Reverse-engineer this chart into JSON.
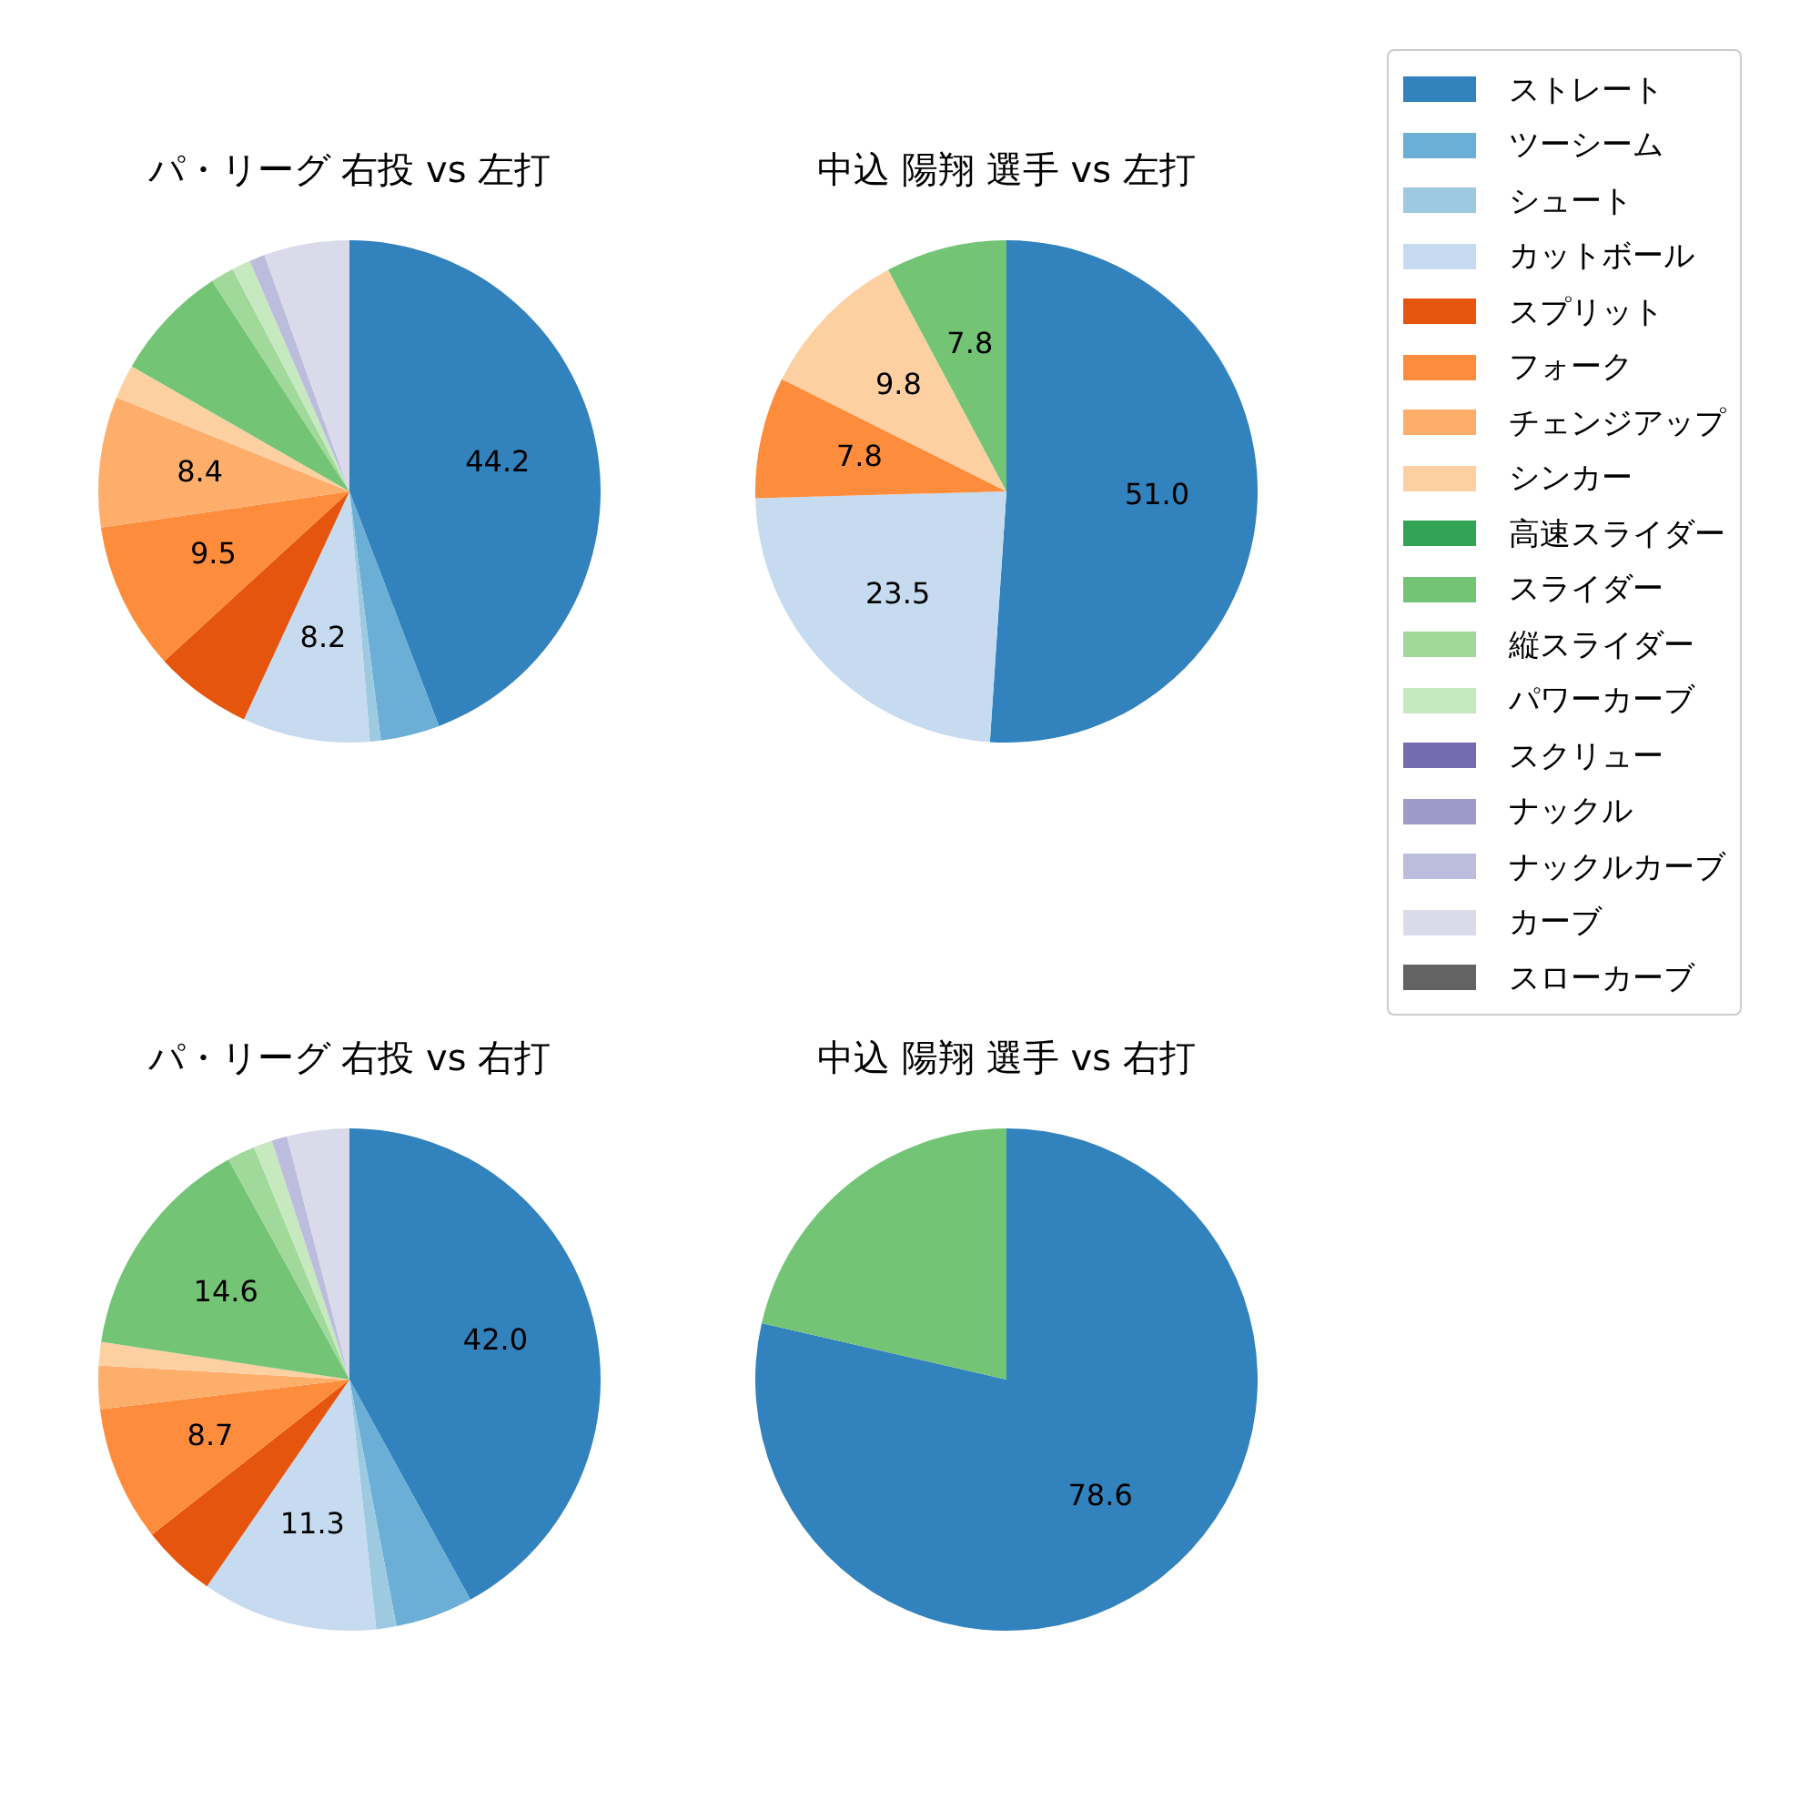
{
  "chart_data": [
    {
      "type": "pie",
      "title": "パ・リーグ 右投 vs 左打",
      "legend": "right",
      "categories": [
        "ストレート",
        "ツーシーム",
        "シュート",
        "カットボール",
        "スプリット",
        "フォーク",
        "チェンジアップ",
        "シンカー",
        "高速スライダー",
        "スライダー",
        "縦スライダー",
        "パワーカーブ",
        "スクリュー",
        "ナックル",
        "ナックルカーブ",
        "カーブ",
        "スローカーブ"
      ],
      "colors": [
        "#3182bd",
        "#6baed6",
        "#9ecae1",
        "#c6dbef",
        "#e6550d",
        "#fd8d3c",
        "#fdae6b",
        "#fdd0a2",
        "#31a354",
        "#74c476",
        "#a1d99b",
        "#c7e9c0",
        "#756bb1",
        "#9e9ac8",
        "#bcbddc",
        "#dadaeb",
        "#636363"
      ],
      "values": [
        44.2,
        3.8,
        0.7,
        8.2,
        6.3,
        9.5,
        8.4,
        2.2,
        0,
        7.5,
        1.5,
        1.2,
        0,
        0,
        1,
        5.5,
        0
      ],
      "value_labels": [
        "44.2",
        null,
        null,
        "8.2",
        null,
        "9.5",
        "8.4",
        null,
        null,
        null,
        null,
        null,
        null,
        null,
        null,
        null,
        null
      ]
    },
    {
      "type": "pie",
      "title": "中込 陽翔 選手 vs 左打",
      "categories": [
        null,
        null,
        null,
        null,
        null,
        null,
        null,
        null,
        null,
        null,
        null,
        null,
        null,
        null,
        null,
        null,
        null
      ],
      "colors": [
        "#3182bd",
        "#6baed6",
        "#9ecae1",
        "#c6dbef",
        "#e6550d",
        "#fd8d3c",
        "#fdae6b",
        "#fdd0a2",
        "#31a354",
        "#74c476",
        "#a1d99b",
        "#c7e9c0",
        "#756bb1",
        "#9e9ac8",
        "#bcbddc",
        "#dadaeb",
        "#636363"
      ],
      "values": [
        51.0,
        0,
        0,
        23.5,
        0,
        7.8,
        0,
        9.8,
        0,
        7.8,
        0,
        0,
        0,
        0,
        0,
        0,
        0
      ],
      "value_labels": [
        "51.0",
        null,
        null,
        "23.5",
        null,
        "7.8",
        null,
        "9.8",
        null,
        "7.8",
        null,
        null,
        null,
        null,
        null,
        null,
        null
      ]
    },
    {
      "type": "pie",
      "title": "パ・リーグ 右投 vs 右打",
      "categories": [
        null,
        null,
        null,
        null,
        null,
        null,
        null,
        null,
        null,
        null,
        null,
        null,
        null,
        null,
        null,
        null,
        null
      ],
      "colors": [
        "#3182bd",
        "#6baed6",
        "#9ecae1",
        "#c6dbef",
        "#e6550d",
        "#fd8d3c",
        "#fdae6b",
        "#fdd0a2",
        "#31a354",
        "#74c476",
        "#a1d99b",
        "#c7e9c0",
        "#756bb1",
        "#9e9ac8",
        "#bcbddc",
        "#dadaeb",
        "#636363"
      ],
      "values": [
        42.0,
        5.0,
        1.3,
        11.3,
        4.8,
        8.7,
        2.8,
        1.5,
        0,
        14.6,
        1.8,
        1.2,
        0,
        0,
        1,
        4.0,
        0
      ],
      "value_labels": [
        "42.0",
        null,
        null,
        "11.3",
        null,
        "8.7",
        null,
        null,
        null,
        "14.6",
        null,
        null,
        null,
        null,
        null,
        null,
        null
      ]
    },
    {
      "type": "pie",
      "title": "中込 陽翔 選手 vs 右打",
      "categories": [
        null,
        null,
        null,
        null,
        null,
        null,
        null,
        null,
        null,
        null,
        null,
        null,
        null,
        null,
        null,
        null,
        null
      ],
      "colors": [
        "#3182bd",
        "#6baed6",
        "#9ecae1",
        "#c6dbef",
        "#e6550d",
        "#fd8d3c",
        "#fdae6b",
        "#fdd0a2",
        "#31a354",
        "#74c476",
        "#a1d99b",
        "#c7e9c0",
        "#756bb1",
        "#9e9ac8",
        "#bcbddc",
        "#dadaeb",
        "#636363"
      ],
      "values": [
        78.6,
        0,
        0,
        0,
        0,
        0,
        0,
        0,
        0,
        21.4,
        0,
        0,
        0,
        0,
        0,
        0,
        0
      ],
      "value_labels": [
        "78.6",
        null,
        null,
        null,
        null,
        null,
        null,
        null,
        null,
        null,
        null,
        null,
        null,
        null,
        null,
        null,
        null
      ]
    }
  ]
}
